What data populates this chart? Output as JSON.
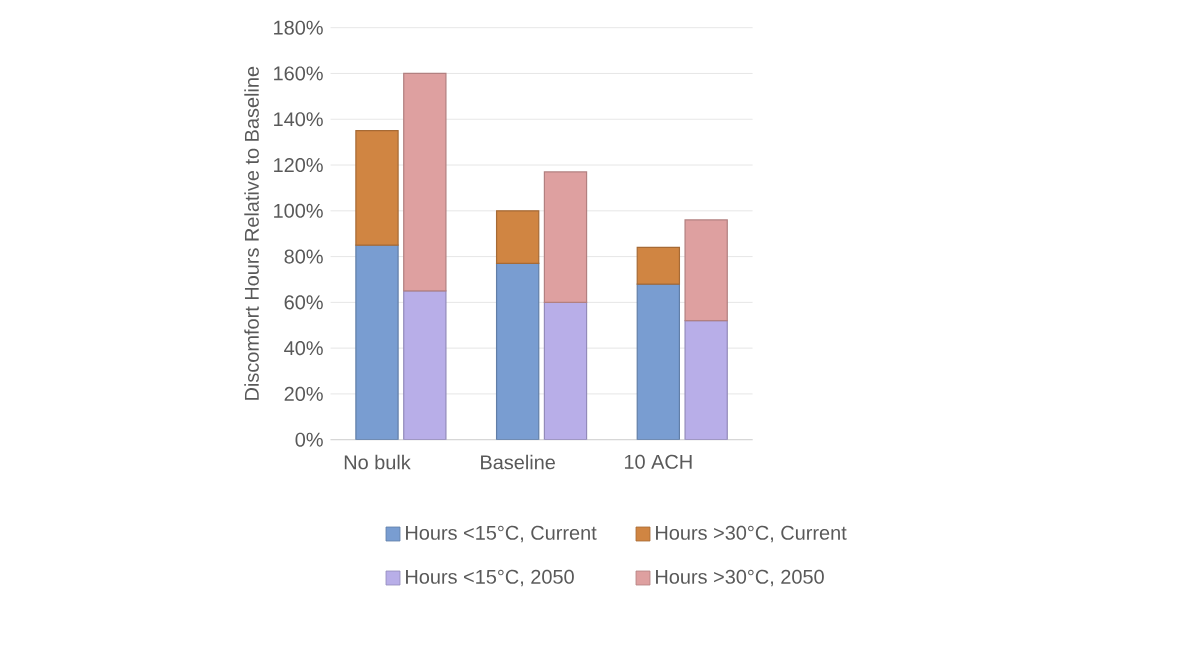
{
  "chart_data": {
    "type": "bar",
    "stacked": true,
    "ylabel": "Discomfort Hours Relative to Baseline",
    "categories": [
      "No bulk",
      null,
      "Baseline",
      null,
      "10 ACH",
      null
    ],
    "series": [
      {
        "name": "Hours <15°C, Current",
        "color": "#799dd1",
        "values": [
          85,
          null,
          77,
          null,
          68,
          null
        ]
      },
      {
        "name": "Hours >30°C, Current",
        "color": "#d08542",
        "values": [
          50,
          null,
          23,
          null,
          16,
          null
        ]
      },
      {
        "name": "Hours <15°C, 2050",
        "color": "#b8aee8",
        "values": [
          null,
          65,
          null,
          60,
          null,
          52
        ]
      },
      {
        "name": "Hours >30°C, 2050",
        "color": "#dea0a0",
        "values": [
          null,
          95,
          null,
          57,
          null,
          44
        ]
      }
    ],
    "ylim": [
      0,
      180
    ],
    "yticks": [
      {
        "value": 0,
        "label": "0%"
      },
      {
        "value": 20,
        "label": "20%"
      },
      {
        "value": 40,
        "label": "40%"
      },
      {
        "value": 60,
        "label": "60%"
      },
      {
        "value": 80,
        "label": "80%"
      },
      {
        "value": 100,
        "label": "100%"
      },
      {
        "value": 120,
        "label": "120%"
      },
      {
        "value": 140,
        "label": "140%"
      },
      {
        "value": 160,
        "label": "160%"
      },
      {
        "value": 180,
        "label": "180%"
      }
    ],
    "grid": "y",
    "legend": "bottom"
  }
}
